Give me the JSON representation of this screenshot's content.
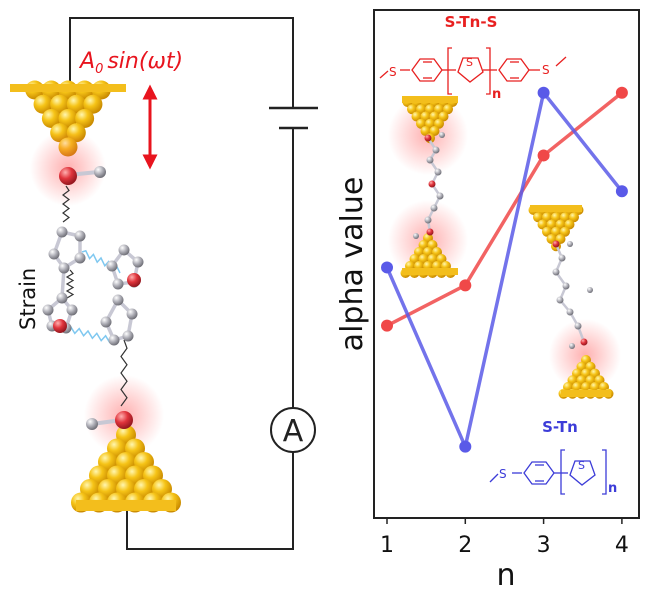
{
  "colors": {
    "red_series": "#f04848",
    "blue_series": "#5a5ae8",
    "gold": "#f2b90f",
    "gold_dark": "#d99a00",
    "oxygen": "#d8343c",
    "carbon": "#a9a9b0",
    "red_text": "#e82020",
    "blue_text": "#3c3cd8"
  },
  "schematic": {
    "drive_label": "A0 sin(ωt)",
    "drive_label_base": "A",
    "drive_label_sub": "0",
    "drive_label_rest": "sin(ωt)",
    "strain_label": "Strain",
    "ammeter_label": "A"
  },
  "chart_data": {
    "type": "line",
    "title": "",
    "xlabel": "n",
    "ylabel": "alpha value",
    "x": [
      1,
      2,
      3,
      4
    ],
    "xlim": [
      0.85,
      4.15
    ],
    "ylim": [
      0,
      1
    ],
    "yticks_shown": false,
    "grid": false,
    "series": [
      {
        "name": "S-Tn-S",
        "color": "#f04848",
        "values": [
          0.34,
          0.43,
          0.72,
          0.86
        ]
      },
      {
        "name": "S-Tn",
        "color": "#5a5ae8",
        "values": [
          0.47,
          0.07,
          0.86,
          0.64
        ]
      }
    ],
    "annotations": [
      {
        "text": "S-Tn-S",
        "color": "#e82020"
      },
      {
        "text": "S-Tn",
        "color": "#3c3cd8"
      },
      {
        "text": "n",
        "color": "#333333"
      }
    ]
  }
}
